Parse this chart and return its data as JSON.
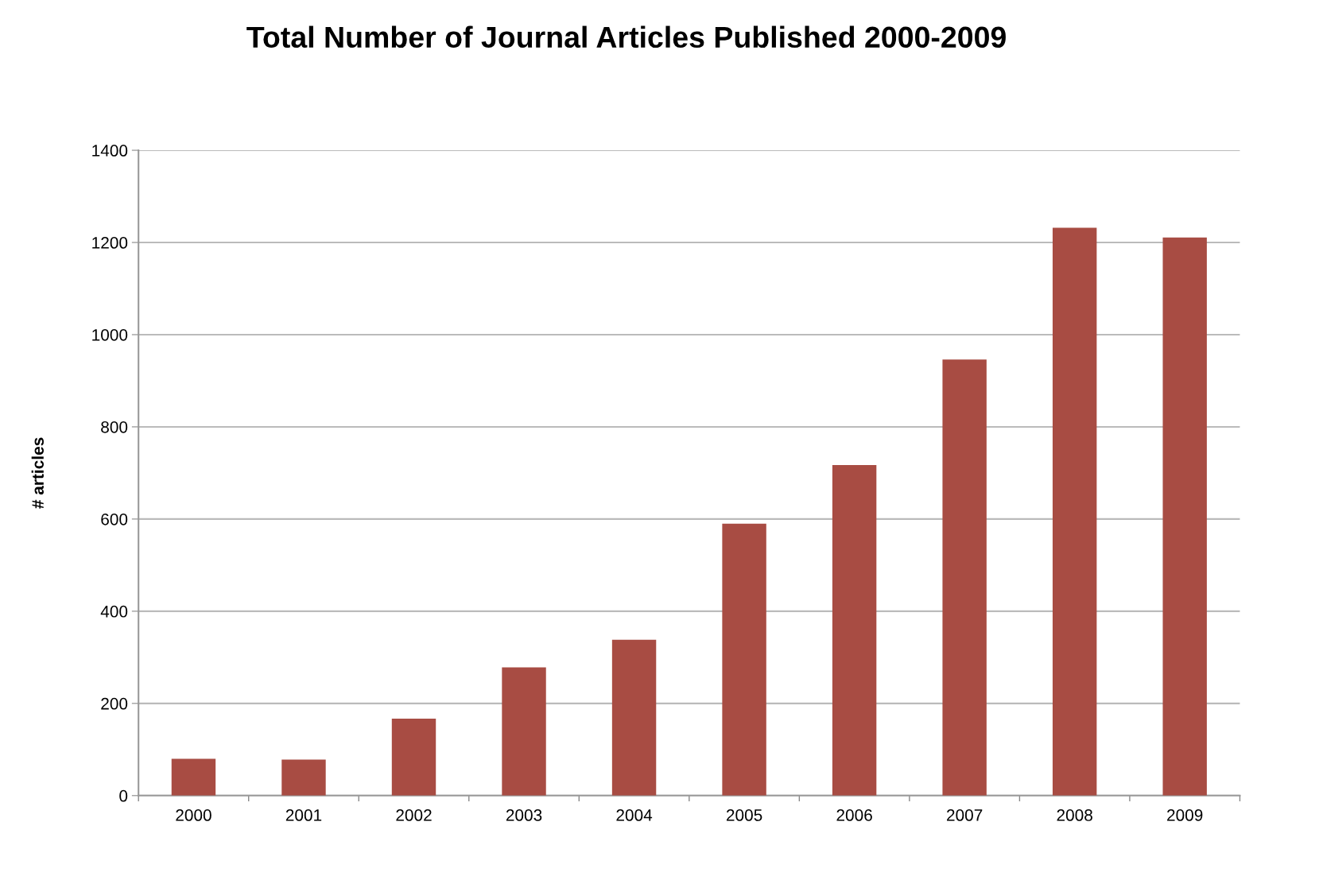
{
  "chart_data": {
    "type": "bar",
    "title": "Total Number of Journal Articles Published 2000-2009",
    "ylabel": "# articles",
    "categories": [
      "2000",
      "2001",
      "2002",
      "2003",
      "2004",
      "2005",
      "2006",
      "2007",
      "2008",
      "2009"
    ],
    "values": [
      80,
      78,
      167,
      278,
      338,
      590,
      717,
      946,
      1232,
      1211
    ],
    "color": "#a84c43",
    "ylim": [
      0,
      1400
    ],
    "yticks": [
      0,
      200,
      400,
      600,
      800,
      1000,
      1200,
      1400
    ],
    "grid": "y",
    "legend": false
  }
}
